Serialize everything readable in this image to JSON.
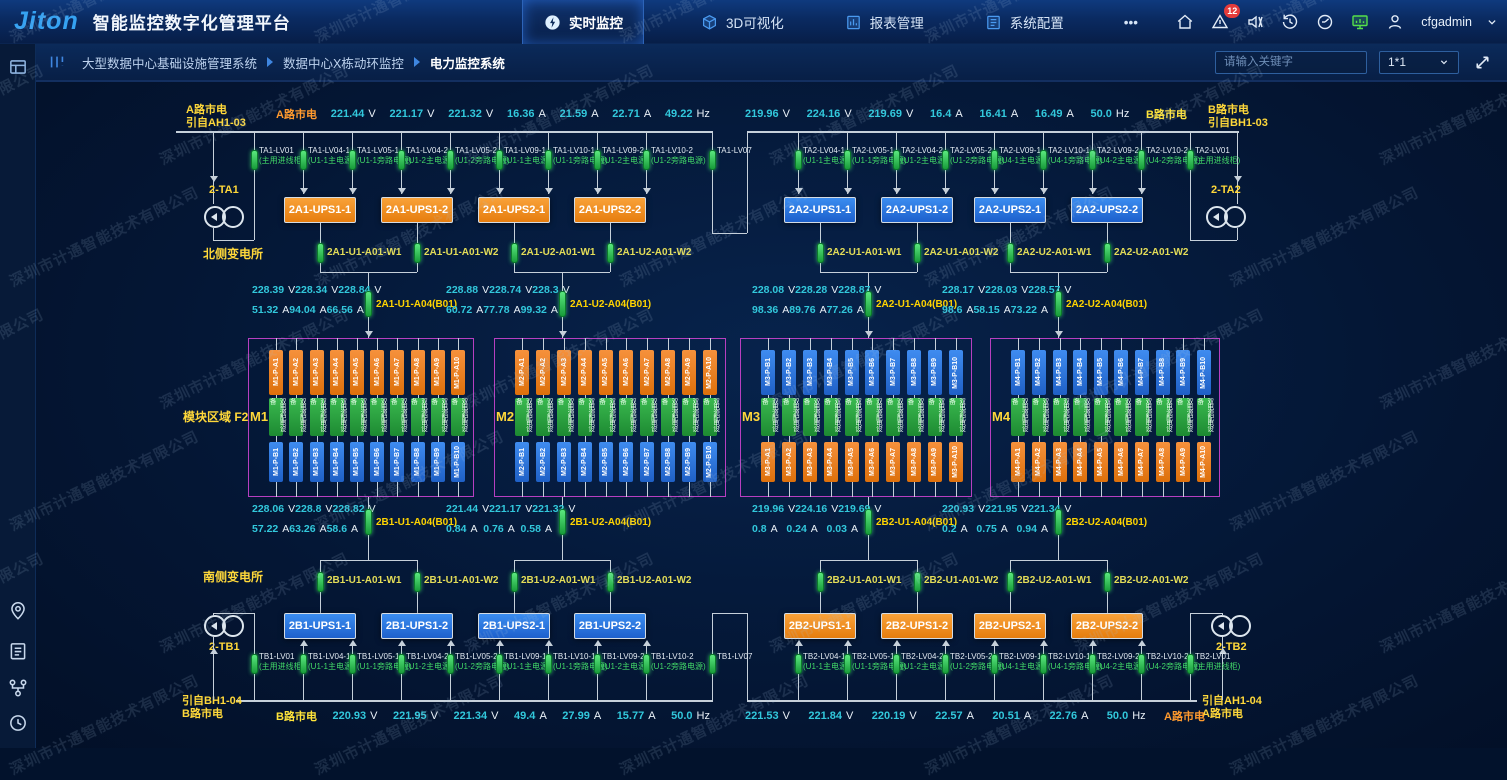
{
  "header": {
    "logo_text": "Jiton",
    "app_title": "智能监控数字化管理平台",
    "tabs": [
      {
        "label": "实时监控",
        "icon": "lightning-icon",
        "active": true
      },
      {
        "label": "3D可视化",
        "icon": "cube-icon",
        "active": false
      },
      {
        "label": "报表管理",
        "icon": "report-icon",
        "active": false
      },
      {
        "label": "系统配置",
        "icon": "settings-icon",
        "active": false
      },
      {
        "label": "•••",
        "icon": "more-icon",
        "active": false
      }
    ],
    "alert_badge": "12",
    "right_icons": [
      "home-icon",
      "alert-icon",
      "sound-off-icon",
      "history-icon",
      "time-icon",
      "screen-icon"
    ],
    "username": "cfgadmin"
  },
  "breadcrumb": {
    "items": [
      "大型数据中心基础设施管理系统",
      "数据中心X栋动环监控",
      "电力监控系统"
    ]
  },
  "toolbar": {
    "search_placeholder": "请输入关键字",
    "grid_select": "1*1"
  },
  "sidebar_icons": [
    "panel-icon",
    "location-pin-icon",
    "report-list-icon",
    "workflow-icon",
    "clock-icon"
  ],
  "watermark_text": "深圳市计通智能技术有限公司",
  "diagram": {
    "feeds": {
      "top_left": [
        "A路市电",
        "引自AH1-03"
      ],
      "top_right": [
        "B路市电",
        "引自BH1-03"
      ],
      "bottom_left": [
        "引自BH1-04",
        "B路市电"
      ],
      "bottom_right": [
        "引自AH1-04",
        "A路市电"
      ]
    },
    "substations": {
      "north": "北侧变电所",
      "south": "南侧变电所"
    },
    "module_area_label": "模块区域 F2",
    "transformers": {
      "top_left": "2-TA1",
      "top_right": "2-TA2",
      "bottom_left": "2-TB1",
      "bottom_right": "2-TB2"
    },
    "bus_measures": {
      "top_a": {
        "label": "A路市电",
        "label_side": "left",
        "label_class": "blab-a",
        "values": [
          [
            "221.44",
            "V"
          ],
          [
            "221.17",
            "V"
          ],
          [
            "221.32",
            "V"
          ],
          [
            "16.36",
            "A"
          ],
          [
            "21.59",
            "A"
          ],
          [
            "22.71",
            "A"
          ],
          [
            "49.22",
            "Hz"
          ]
        ]
      },
      "top_b": {
        "label": "B路市电",
        "label_side": "right",
        "label_class": "blab-b",
        "values": [
          [
            "219.96",
            "V"
          ],
          [
            "224.16",
            "V"
          ],
          [
            "219.69",
            "V"
          ],
          [
            "16.4",
            "A"
          ],
          [
            "16.41",
            "A"
          ],
          [
            "16.49",
            "A"
          ],
          [
            "50.0",
            "Hz"
          ]
        ]
      },
      "bottom_b": {
        "label": "B路市电",
        "label_side": "left",
        "label_class": "blab-b",
        "values": [
          [
            "220.93",
            "V"
          ],
          [
            "221.95",
            "V"
          ],
          [
            "221.34",
            "V"
          ],
          [
            "49.4",
            "A"
          ],
          [
            "27.99",
            "A"
          ],
          [
            "15.77",
            "A"
          ],
          [
            "50.0",
            "Hz"
          ]
        ]
      },
      "bottom_a": {
        "label": "A路市电",
        "label_side": "right",
        "label_class": "blab-a",
        "values": [
          [
            "221.53",
            "V"
          ],
          [
            "221.84",
            "V"
          ],
          [
            "220.19",
            "V"
          ],
          [
            "22.57",
            "A"
          ],
          [
            "20.51",
            "A"
          ],
          [
            "22.76",
            "A"
          ],
          [
            "50.0",
            "Hz"
          ]
        ]
      }
    },
    "breaker_rows": {
      "top_left": [
        {
          "name": "TA1-LV01",
          "sub": "(主用进线柜)"
        },
        {
          "name": "TA1-LV04-1",
          "sub": "(U1-1主电源)"
        },
        {
          "name": "TA1-LV05-1",
          "sub": "(U1-1旁路电源)"
        },
        {
          "name": "TA1-LV04-2",
          "sub": "(U1-2主电源)"
        },
        {
          "name": "TA1-LV05-2",
          "sub": "(U1-2旁路电源)"
        },
        {
          "name": "TA1-LV09-1",
          "sub": "(U1-1主电源)"
        },
        {
          "name": "TA1-LV10-1",
          "sub": "(U1-1旁路电源)"
        },
        {
          "name": "TA1-LV09-2",
          "sub": "(U1-2主电源)"
        },
        {
          "name": "TA1-LV10-2",
          "sub": "(U1-2旁路电源)"
        },
        {
          "name": "TA1-LV07",
          "sub": ""
        }
      ],
      "top_right": [
        {
          "name": "TA2-LV04-1",
          "sub": "(U1-1主电源)"
        },
        {
          "name": "TA2-LV05-1",
          "sub": "(U1-1旁路电源)"
        },
        {
          "name": "TA2-LV04-2",
          "sub": "(U1-2主电源)"
        },
        {
          "name": "TA2-LV05-2",
          "sub": "(U1-2旁路电源)"
        },
        {
          "name": "TA2-LV09-1",
          "sub": "(U4-1主电源)"
        },
        {
          "name": "TA2-LV10-1",
          "sub": "(U4-1旁路电源)"
        },
        {
          "name": "TA2-LV09-2",
          "sub": "(U4-2主电源)"
        },
        {
          "name": "TA2-LV10-2",
          "sub": "(U4-2旁路电源)"
        },
        {
          "name": "TA2-LV01",
          "sub": "(主用进线柜)"
        }
      ],
      "bottom_left": [
        {
          "name": "TB1-LV01",
          "sub": "(主用进线柜)"
        },
        {
          "name": "TB1-LV04-1",
          "sub": "(U1-1主电源)"
        },
        {
          "name": "TB1-LV05-1",
          "sub": "(U1-1旁路电源)"
        },
        {
          "name": "TB1-LV04-2",
          "sub": "(U1-2主电源)"
        },
        {
          "name": "TB1-LV05-2",
          "sub": "(U1-2旁路电源)"
        },
        {
          "name": "TB1-LV09-1",
          "sub": "(U1-1主电源)"
        },
        {
          "name": "TB1-LV10-1",
          "sub": "(U1-1旁路电源)"
        },
        {
          "name": "TB1-LV09-2",
          "sub": "(U1-2主电源)"
        },
        {
          "name": "TB1-LV10-2",
          "sub": "(U1-2旁路电源)"
        },
        {
          "name": "TB1-LV07",
          "sub": ""
        }
      ],
      "bottom_right": [
        {
          "name": "TB2-LV04-1",
          "sub": "(U1-1主电源)"
        },
        {
          "name": "TB2-LV05-1",
          "sub": "(U1-1旁路电源)"
        },
        {
          "name": "TB2-LV04-2",
          "sub": "(U1-2主电源)"
        },
        {
          "name": "TB2-LV05-2",
          "sub": "(U1-2旁路电源)"
        },
        {
          "name": "TB2-LV09-1",
          "sub": "(U4-1主电源)"
        },
        {
          "name": "TB2-LV10-1",
          "sub": "(U4-1旁路电源)"
        },
        {
          "name": "TB2-LV09-2",
          "sub": "(U4-2主电源)"
        },
        {
          "name": "TB2-LV10-2",
          "sub": "(U4-2旁路电源)"
        },
        {
          "name": "TB2-LV01",
          "sub": "(主用进线柜)"
        }
      ]
    },
    "ups_rows": {
      "north_left": {
        "color": "orange",
        "items": [
          "2A1-UPS1-1",
          "2A1-UPS1-2",
          "2A1-UPS2-1",
          "2A1-UPS2-2"
        ]
      },
      "north_right": {
        "color": "blue",
        "items": [
          "2A2-UPS1-1",
          "2A2-UPS1-2",
          "2A2-UPS2-1",
          "2A2-UPS2-2"
        ]
      },
      "south_left": {
        "color": "blue",
        "items": [
          "2B1-UPS1-1",
          "2B1-UPS1-2",
          "2B1-UPS2-1",
          "2B1-UPS2-2"
        ]
      },
      "south_right": {
        "color": "orange",
        "items": [
          "2B2-UPS1-1",
          "2B2-UPS1-2",
          "2B2-UPS2-1",
          "2B2-UPS2-2"
        ]
      }
    },
    "feeder_breakers": {
      "north": [
        "2A1-U1-A01-W1",
        "2A1-U1-A01-W2",
        "2A1-U2-A01-W1",
        "2A1-U2-A01-W2",
        "2A2-U1-A01-W1",
        "2A2-U1-A01-W2",
        "2A2-U2-A01-W1",
        "2A2-U2-A01-W2"
      ],
      "south": [
        "2B1-U1-A01-W1",
        "2B1-U1-A01-W2",
        "2B1-U2-A01-W1",
        "2B1-U2-A01-W2",
        "2B2-U1-A01-W1",
        "2B2-U1-A01-W2",
        "2B2-U2-A01-W1",
        "2B2-U2-A01-W2"
      ]
    },
    "branch_measures": {
      "north": [
        {
          "volts": [
            "228.39",
            "228.34",
            "228.84"
          ],
          "amps": [
            "51.32",
            "94.04",
            "66.56"
          ],
          "label": "2A1-U1-A04(B01)"
        },
        {
          "volts": [
            "228.88",
            "228.74",
            "228.3"
          ],
          "amps": [
            "60.72",
            "77.78",
            "99.32"
          ],
          "label": "2A1-U2-A04(B01)"
        },
        {
          "volts": [
            "228.08",
            "228.28",
            "228.87"
          ],
          "amps": [
            "98.36",
            "89.76",
            "77.26"
          ],
          "label": "2A2-U1-A04(B01)"
        },
        {
          "volts": [
            "228.17",
            "228.03",
            "228.57"
          ],
          "amps": [
            "98.6",
            "58.15",
            "73.22"
          ],
          "label": "2A2-U2-A04(B01)"
        }
      ],
      "south": [
        {
          "volts": [
            "228.06",
            "228.8",
            "228.82"
          ],
          "amps": [
            "57.22",
            "63.26",
            "58.6"
          ],
          "label": "2B1-U1-A04(B01)"
        },
        {
          "volts": [
            "221.44",
            "221.17",
            "221.32"
          ],
          "amps": [
            "0.84",
            "0.76",
            "0.58"
          ],
          "label": "2B1-U2-A04(B01)"
        },
        {
          "volts": [
            "219.96",
            "224.16",
            "219.69"
          ],
          "amps": [
            "0.8",
            "0.24",
            "0.03"
          ],
          "label": "2B2-U1-A04(B01)"
        },
        {
          "volts": [
            "220.93",
            "221.95",
            "221.34"
          ],
          "amps": [
            "0.2",
            "0.75",
            "0.94"
          ],
          "label": "2B2-U2-A04(B01)"
        }
      ]
    },
    "modules": [
      {
        "name": "M1",
        "top_prefix": "M1-P-A",
        "top_color": "orange",
        "mid_text": "双电源配电设备",
        "bottom_prefix": "M1-P-B",
        "bottom_color": "blue",
        "count": 10
      },
      {
        "name": "M2",
        "top_prefix": "M2-P-A",
        "top_color": "orange",
        "mid_text": "双电源配电设备",
        "bottom_prefix": "M2-P-B",
        "bottom_color": "blue",
        "count": 10
      },
      {
        "name": "M3",
        "top_prefix": "M3-P-B",
        "top_color": "blue",
        "mid_text": "双电源配电设备",
        "bottom_prefix": "M3-P-A",
        "bottom_color": "orange",
        "count": 10
      },
      {
        "name": "M4",
        "top_prefix": "M4-P-B",
        "top_color": "blue",
        "mid_text": "双电源配电设备",
        "bottom_prefix": "M4-P-A",
        "bottom_color": "orange",
        "count": 10
      }
    ]
  }
}
